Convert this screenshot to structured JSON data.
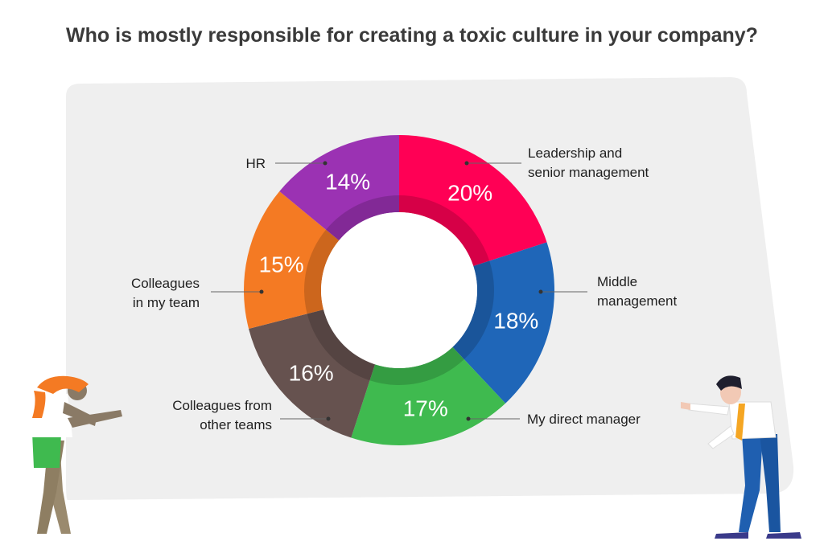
{
  "title": "Who is mostly responsible for creating a toxic culture in your company?",
  "chart_data": {
    "type": "pie",
    "variant": "donut",
    "title": "Who is mostly responsible for creating a toxic culture in your company?",
    "categories": [
      "Leadership and senior management",
      "Middle management",
      "My direct manager",
      "Colleagues from other teams",
      "Colleagues in my team",
      "HR"
    ],
    "values": [
      20,
      18,
      17,
      16,
      15,
      14
    ],
    "value_labels": [
      "20%",
      "18%",
      "17%",
      "16%",
      "15%",
      "14%"
    ],
    "label_lines": [
      [
        "Leadership and",
        "senior management"
      ],
      [
        "Middle",
        "management"
      ],
      [
        "My direct manager"
      ],
      [
        "Colleagues from",
        "other teams"
      ],
      [
        "Colleagues",
        "in my team"
      ],
      [
        "HR"
      ]
    ],
    "colors": [
      "#ff0055",
      "#1f66b8",
      "#3fba4f",
      "#66524f",
      "#f47a23",
      "#9b32b3"
    ],
    "start_angle": "12 o'clock",
    "direction": "clockwise"
  },
  "illustrations": {
    "left": "woman-pointing-figure",
    "right": "man-pointing-figure"
  }
}
